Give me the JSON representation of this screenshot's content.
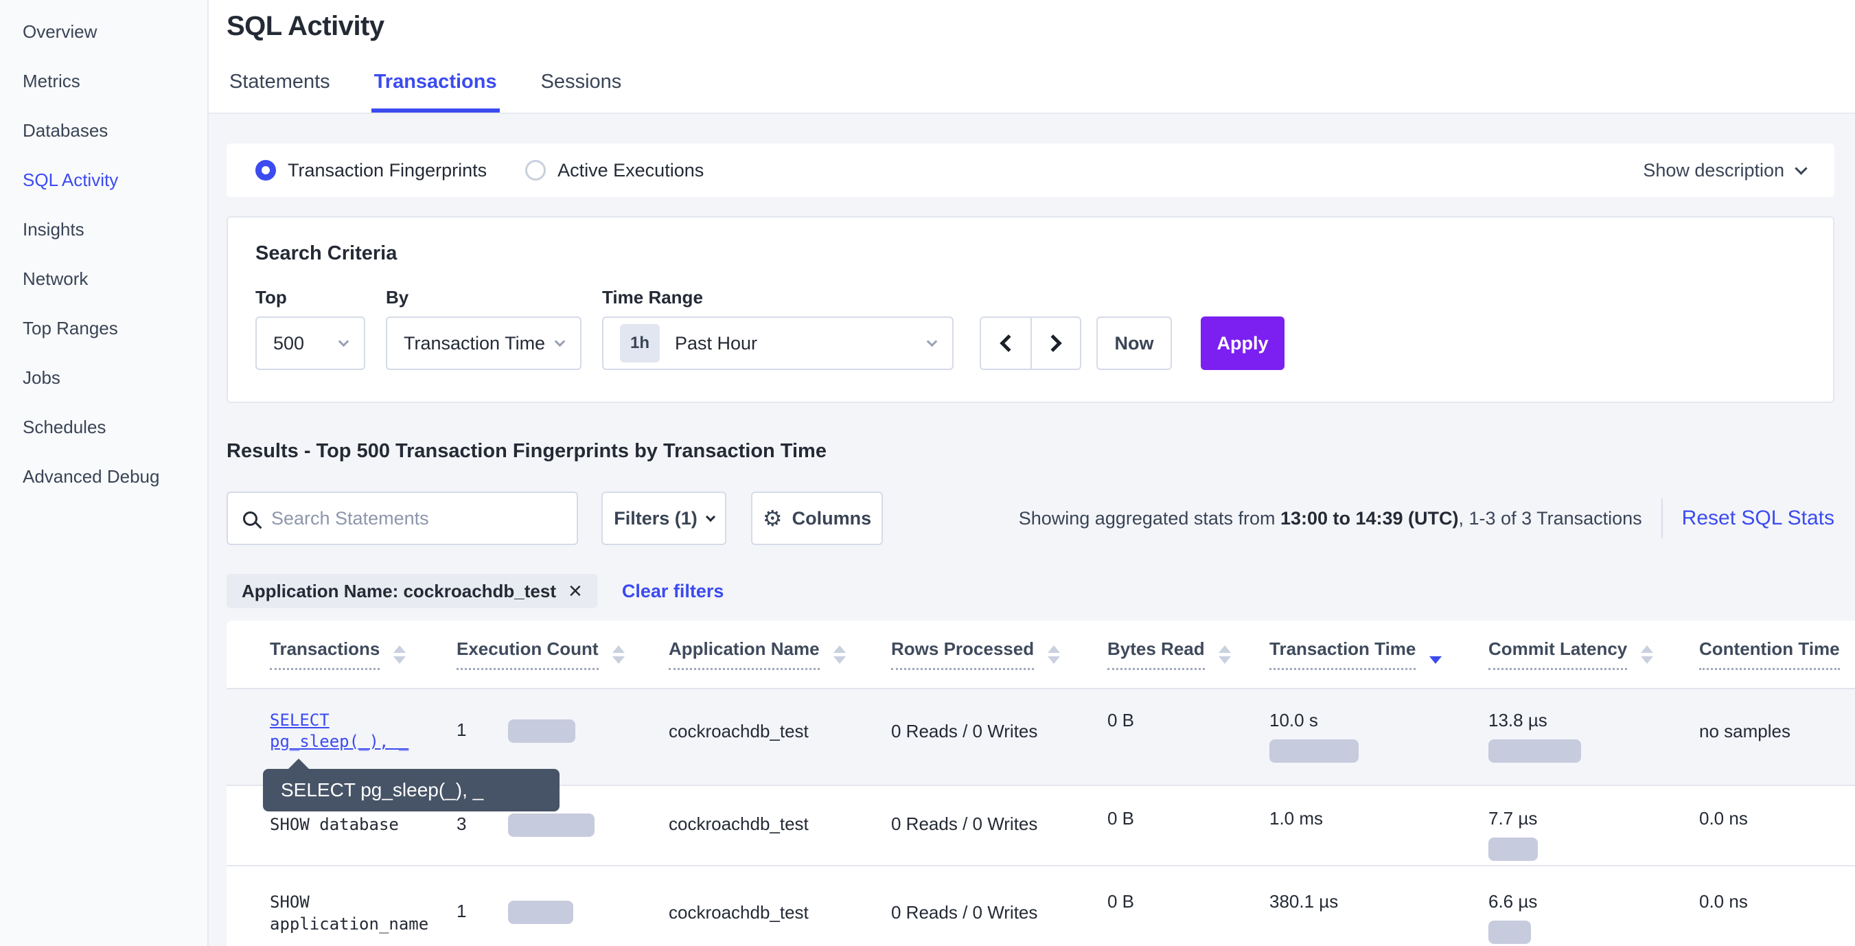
{
  "sidebar": {
    "items": [
      {
        "label": "Overview"
      },
      {
        "label": "Metrics"
      },
      {
        "label": "Databases"
      },
      {
        "label": "SQL Activity"
      },
      {
        "label": "Insights"
      },
      {
        "label": "Network"
      },
      {
        "label": "Top Ranges"
      },
      {
        "label": "Jobs"
      },
      {
        "label": "Schedules"
      },
      {
        "label": "Advanced Debug"
      }
    ]
  },
  "header": {
    "title": "SQL Activity",
    "tabs": [
      {
        "label": "Statements"
      },
      {
        "label": "Transactions"
      },
      {
        "label": "Sessions"
      }
    ]
  },
  "view_toggle": {
    "fingerprints_label": "Transaction Fingerprints",
    "active_exec_label": "Active Executions",
    "show_description_label": "Show description"
  },
  "search_criteria": {
    "heading": "Search Criteria",
    "top_label": "Top",
    "top_value": "500",
    "by_label": "By",
    "by_value": "Transaction Time",
    "time_range_label": "Time Range",
    "time_range_badge": "1h",
    "time_range_value": "Past Hour",
    "now_label": "Now",
    "apply_label": "Apply"
  },
  "results": {
    "heading": "Results - Top 500 Transaction Fingerprints by Transaction Time",
    "search_placeholder": "Search Statements",
    "filters_label": "Filters (1)",
    "columns_label": "Columns",
    "stats_prefix": "Showing aggregated stats from ",
    "stats_range": "13:00 to 14:39 (UTC)",
    "stats_suffix": ", 1-3 of 3 Transactions",
    "reset_label": "Reset SQL Stats",
    "filter_chip": "Application Name: cockroachdb_test",
    "clear_filters_label": "Clear filters"
  },
  "tooltip": {
    "text": "SELECT pg_sleep(_), _"
  },
  "table": {
    "columns": [
      {
        "label": "Transactions",
        "sort": "none"
      },
      {
        "label": "Execution Count",
        "sort": "none"
      },
      {
        "label": "Application Name",
        "sort": "none"
      },
      {
        "label": "Rows Processed",
        "sort": "none"
      },
      {
        "label": "Bytes Read",
        "sort": "none"
      },
      {
        "label": "Transaction Time",
        "sort": "desc"
      },
      {
        "label": "Commit Latency",
        "sort": "none"
      },
      {
        "label": "Contention Time",
        "sort": "none"
      }
    ],
    "rows": [
      {
        "transaction_line1": "SELECT",
        "transaction_line2": "pg_sleep(_), _",
        "execution_count": "1",
        "exec_bar_width": 98,
        "application_name": "cockroachdb_test",
        "rows_processed": "0 Reads / 0 Writes",
        "bytes_read": "0 B",
        "transaction_time": "10.0 s",
        "txn_bar_width": 130,
        "commit_latency": "13.8 µs",
        "commit_bar_width": 135,
        "contention_time": "no samples"
      },
      {
        "transaction": "SHOW database",
        "execution_count": "3",
        "exec_bar_width": 126,
        "application_name": "cockroachdb_test",
        "rows_processed": "0 Reads / 0 Writes",
        "bytes_read": "0 B",
        "transaction_time": "1.0 ms",
        "commit_latency": "7.7 µs",
        "commit_bar_width": 72,
        "contention_time": "0.0 ns"
      },
      {
        "transaction": "SHOW application_name",
        "execution_count": "1",
        "exec_bar_width": 95,
        "application_name": "cockroachdb_test",
        "rows_processed": "0 Reads / 0 Writes",
        "bytes_read": "0 B",
        "transaction_time": "380.1 µs",
        "commit_latency": "6.6 µs",
        "commit_bar_width": 62,
        "contention_time": "0.0 ns"
      }
    ]
  }
}
